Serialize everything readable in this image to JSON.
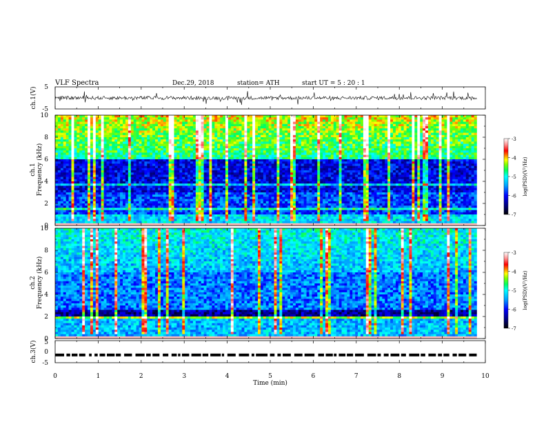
{
  "header": {
    "title": "VLF  Spectra",
    "date": "Dec.29, 2018",
    "station": "station= ATH",
    "start": "start  UT  =    5  : 20 : 1"
  },
  "chart_data": {
    "type": "spectrogram",
    "x_axis": {
      "label": "Time  (min)",
      "range": [
        0,
        10
      ],
      "ticks": [
        "0",
        "1",
        "2",
        "3",
        "4",
        "5",
        "6",
        "7",
        "8",
        "9",
        "10"
      ],
      "data_end": 9.8
    },
    "panels": [
      {
        "id": "ch1_waveform",
        "type": "line",
        "ylabel": "ch.1(V)",
        "ylim": [
          -5,
          5
        ],
        "yticks": [
          "5",
          "-5"
        ],
        "baseline": 0,
        "description_level": "noise-like waveform centered near 0 V with amplitude about 1 V and spikes to about 2 V"
      },
      {
        "id": "ch1_spectrogram",
        "type": "heatmap",
        "ylabel_line1": "ch.1",
        "ylabel_line2": "Frequency  (kHz)",
        "ylim": [
          0,
          10
        ],
        "yticks": [
          "0",
          "2",
          "4",
          "6",
          "8",
          "10"
        ],
        "colorbar": {
          "label": "log(PSD)(V²/Hz)",
          "range": [
            -7,
            -3
          ],
          "ticks": [
            "-3",
            "-4",
            "-5",
            "-6",
            "-7"
          ]
        }
      },
      {
        "id": "ch2_spectrogram",
        "type": "heatmap",
        "ylabel_line1": "ch.2",
        "ylabel_line2": "Frequency  (kHz)",
        "ylim": [
          0,
          10
        ],
        "yticks": [
          "0",
          "2",
          "4",
          "6",
          "8",
          "10"
        ],
        "colorbar": {
          "label": "log(PSD)(V²/Hz)",
          "range": [
            -7,
            -3
          ],
          "ticks": [
            "-3",
            "-4",
            "-5",
            "-6",
            "-7"
          ]
        }
      },
      {
        "id": "ch3_pulses",
        "type": "line",
        "ylabel": "ch.3(V)",
        "ylim": [
          -5,
          5
        ],
        "yticks": [
          "5",
          "0",
          "-5"
        ],
        "level": -1.5
      }
    ],
    "colormap": [
      "#000080",
      "#0000ff",
      "#0080ff",
      "#00ffff",
      "#00ff80",
      "#80ff00",
      "#ffff00",
      "#ff8000",
      "#ff0000",
      "#ffffff"
    ]
  }
}
